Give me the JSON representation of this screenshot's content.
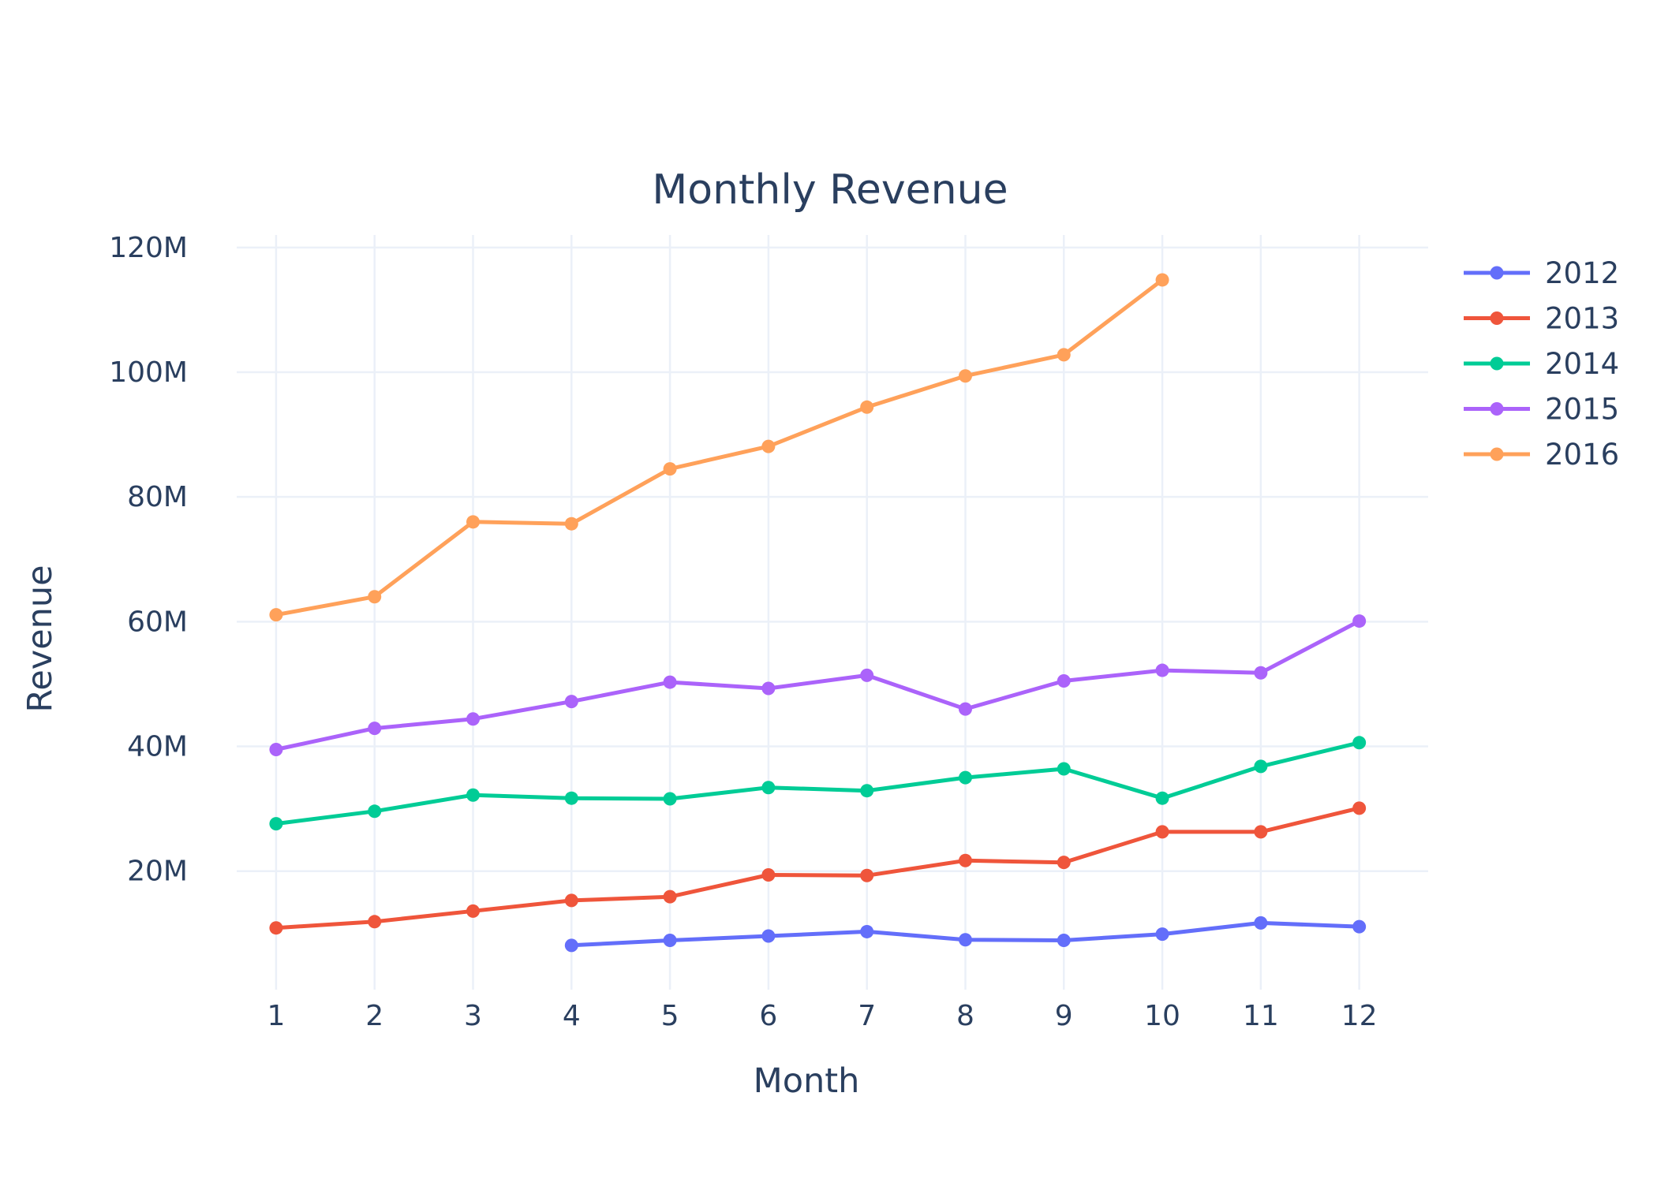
{
  "chart_data": {
    "type": "line",
    "title": "Monthly Revenue",
    "xlabel": "Month",
    "ylabel": "Revenue",
    "x_ticks": [
      1,
      2,
      3,
      4,
      5,
      6,
      7,
      8,
      9,
      10,
      11,
      12
    ],
    "x_tick_labels": [
      "1",
      "2",
      "3",
      "4",
      "5",
      "6",
      "7",
      "8",
      "9",
      "10",
      "11",
      "12"
    ],
    "y_ticks": [
      20000000,
      40000000,
      60000000,
      80000000,
      100000000,
      120000000
    ],
    "y_tick_labels": [
      "20M",
      "40M",
      "60M",
      "80M",
      "100M",
      "120M"
    ],
    "xlim": [
      0.6,
      12.7
    ],
    "ylim": [
      1000000,
      122000000
    ],
    "grid": true,
    "legend_position": "top-right",
    "series": [
      {
        "name": "2012",
        "color": "#636efa",
        "x": [
          4,
          5,
          6,
          7,
          8,
          9,
          10,
          11,
          12
        ],
        "values": [
          8100000,
          8900000,
          9600000,
          10300000,
          9000000,
          8900000,
          9900000,
          11700000,
          11100000
        ]
      },
      {
        "name": "2013",
        "color": "#ef553b",
        "x": [
          1,
          2,
          3,
          4,
          5,
          6,
          7,
          8,
          9,
          10,
          11,
          12
        ],
        "values": [
          10900000,
          11900000,
          13600000,
          15300000,
          15900000,
          19400000,
          19300000,
          21700000,
          21400000,
          26300000,
          26300000,
          30100000
        ]
      },
      {
        "name": "2014",
        "color": "#00cc96",
        "x": [
          1,
          2,
          3,
          4,
          5,
          6,
          7,
          8,
          9,
          10,
          11,
          12
        ],
        "values": [
          27600000,
          29600000,
          32200000,
          31700000,
          31600000,
          33400000,
          32900000,
          35000000,
          36400000,
          31700000,
          36800000,
          40600000
        ]
      },
      {
        "name": "2015",
        "color": "#ab63fa",
        "x": [
          1,
          2,
          3,
          4,
          5,
          6,
          7,
          8,
          9,
          10,
          11,
          12
        ],
        "values": [
          39500000,
          42900000,
          44400000,
          47200000,
          50300000,
          49300000,
          51400000,
          46000000,
          50500000,
          52200000,
          51800000,
          60100000
        ]
      },
      {
        "name": "2016",
        "color": "#ffa15a",
        "x": [
          1,
          2,
          3,
          4,
          5,
          6,
          7,
          8,
          9,
          10
        ],
        "values": [
          61100000,
          64000000,
          76000000,
          75700000,
          84500000,
          88100000,
          94400000,
          99400000,
          102800000,
          114800000
        ]
      }
    ]
  }
}
